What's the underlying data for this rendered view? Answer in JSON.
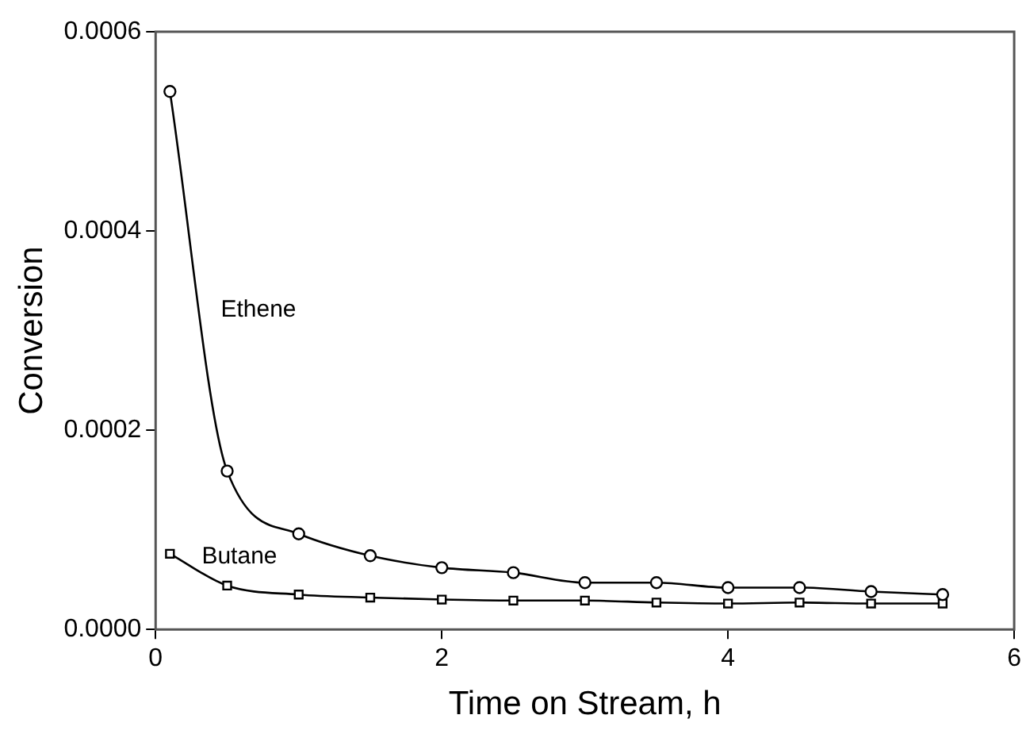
{
  "chart_data": {
    "type": "line",
    "xlabel": "Time on Stream, h",
    "ylabel": "Conversion",
    "xlim": [
      0,
      6
    ],
    "xticks": [
      0,
      2,
      4,
      6
    ],
    "ylim": [
      0,
      0.0006
    ],
    "yticks": [
      {
        "value": 0,
        "label": "0.0000"
      },
      {
        "value": 0.0002,
        "label": "0.0002"
      },
      {
        "value": 0.0004,
        "label": "0.0004"
      },
      {
        "value": 0.0006,
        "label": "0.0006"
      }
    ],
    "grid": false,
    "legend": false,
    "series": [
      {
        "name": "Ethene",
        "color": "#000000",
        "marker": "circle",
        "x": [
          0.1,
          0.5,
          1,
          1.5,
          2,
          2.5,
          3,
          3.5,
          4,
          4.5,
          5,
          5.5
        ],
        "values": [
          0.00054,
          0.000159,
          9.6e-05,
          7.4e-05,
          6.2e-05,
          5.7e-05,
          4.7e-05,
          4.7e-05,
          4.2e-05,
          4.2e-05,
          3.8e-05,
          3.5e-05
        ]
      },
      {
        "name": "Butane",
        "color": "#000000",
        "marker": "square",
        "x": [
          0.1,
          0.5,
          1,
          1.5,
          2,
          2.5,
          3,
          3.5,
          4,
          4.5,
          5,
          5.5
        ],
        "values": [
          7.6e-05,
          4.4e-05,
          3.5e-05,
          3.2e-05,
          3e-05,
          2.9e-05,
          2.9e-05,
          2.7e-05,
          2.6e-05,
          2.7e-05,
          2.6e-05,
          2.6e-05
        ]
      }
    ]
  }
}
